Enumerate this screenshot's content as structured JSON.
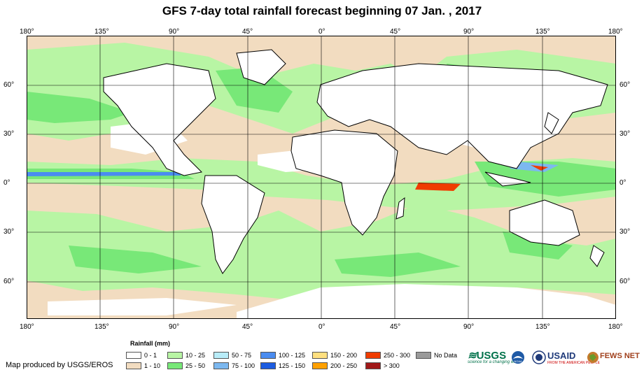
{
  "title": "GFS 7-day total rainfall forecast beginning 07 Jan. , 2017",
  "lon_ticks": [
    "180°",
    "135°",
    "90°",
    "45°",
    "0°",
    "45°",
    "90°",
    "135°",
    "180°"
  ],
  "lat_ticks": [
    "60°",
    "30°",
    "0°",
    "30°",
    "60°"
  ],
  "legend": {
    "title": "Rainfall (mm)",
    "items": [
      {
        "label": "0 - 1",
        "color": "#ffffff"
      },
      {
        "label": "1 - 10",
        "color": "#f2dcc0"
      },
      {
        "label": "10 - 25",
        "color": "#b8f5a4"
      },
      {
        "label": "25 - 50",
        "color": "#78e878"
      },
      {
        "label": "50 - 75",
        "color": "#b8ecf8"
      },
      {
        "label": "75 - 100",
        "color": "#7cb8f0"
      },
      {
        "label": "100 - 125",
        "color": "#4a8cf0"
      },
      {
        "label": "125 - 150",
        "color": "#1c5ce0"
      },
      {
        "label": "150 - 200",
        "color": "#ffe080"
      },
      {
        "label": "200 - 250",
        "color": "#ffa000"
      },
      {
        "label": "250 - 300",
        "color": "#f03c00"
      },
      {
        "label": "> 300",
        "color": "#a01818"
      },
      {
        "label": "No Data",
        "color": "#9a9a9a"
      }
    ]
  },
  "credit": "Map produced by USGS/EROS",
  "logos": {
    "usgs": "USGS",
    "usgs_tagline": "science for a changing world",
    "noaa": "NOAA",
    "usaid": "USAID",
    "usaid_tagline": "FROM THE AMERICAN PEOPLE",
    "fews": "FEWS NET"
  },
  "colors": {
    "land": "#ffffff",
    "coast": "#000000",
    "grid": "#000000",
    "dry": "#f2dcc0",
    "light": "#b8f5a4",
    "mid": "#78e878"
  }
}
